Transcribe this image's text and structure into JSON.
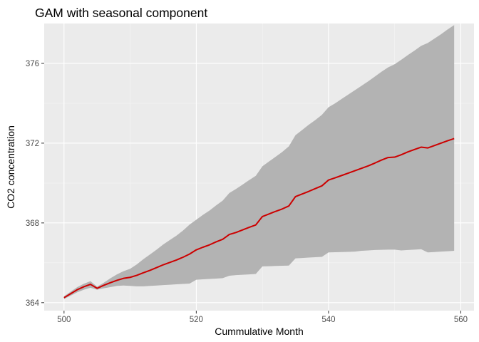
{
  "chart_data": {
    "type": "line",
    "title": "GAM with seasonal component",
    "xlabel": "Cummulative Month",
    "ylabel": "CO2 concentration",
    "xlim": [
      497,
      562
    ],
    "ylim": [
      363.6,
      378.0
    ],
    "xticks": [
      500,
      520,
      540,
      560
    ],
    "yticks": [
      364,
      368,
      372,
      376
    ],
    "grid": true,
    "legend": "none",
    "colors": {
      "panel_bg": "#ebebeb",
      "grid_major": "#ffffff",
      "grid_minor": "#f5f5f5",
      "ribbon": "#b3b3b3",
      "line": "#cc0000",
      "tick": "#333333"
    },
    "series": [
      {
        "x": [
          500,
          501,
          502,
          503,
          504,
          505,
          506,
          507,
          508,
          509,
          510,
          511,
          512,
          513,
          514,
          515,
          516,
          517,
          518,
          519,
          520,
          521,
          522,
          523,
          524,
          525,
          526,
          527,
          528,
          529,
          530,
          531,
          532,
          533,
          534,
          535,
          536,
          537,
          538,
          539,
          540,
          541,
          542,
          543,
          544,
          545,
          546,
          547,
          548,
          549,
          550,
          551,
          552,
          553,
          554,
          555,
          556,
          557,
          558,
          559
        ],
        "values": [
          364.25,
          364.45,
          364.65,
          364.8,
          364.92,
          364.72,
          364.87,
          365.0,
          365.12,
          365.22,
          365.27,
          365.37,
          365.5,
          365.62,
          365.76,
          365.9,
          366.02,
          366.14,
          366.28,
          366.44,
          366.65,
          366.78,
          366.9,
          367.05,
          367.18,
          367.42,
          367.52,
          367.65,
          367.78,
          367.9,
          368.32,
          368.45,
          368.58,
          368.7,
          368.85,
          369.32,
          369.45,
          369.58,
          369.72,
          369.86,
          370.15,
          370.26,
          370.38,
          370.5,
          370.62,
          370.74,
          370.86,
          371.0,
          371.15,
          371.28,
          371.3,
          371.42,
          371.56,
          371.68,
          371.8,
          371.76,
          371.88,
          372.0,
          372.12,
          372.23
        ],
        "lower": [
          364.18,
          364.35,
          364.52,
          364.65,
          364.75,
          364.65,
          364.72,
          364.78,
          364.84,
          364.86,
          364.84,
          364.82,
          364.82,
          364.84,
          364.86,
          364.88,
          364.9,
          364.92,
          364.94,
          364.96,
          365.15,
          365.17,
          365.19,
          365.21,
          365.23,
          365.35,
          365.38,
          365.4,
          365.42,
          365.44,
          365.82,
          365.83,
          365.84,
          365.85,
          365.86,
          366.22,
          366.24,
          366.26,
          366.28,
          366.3,
          366.52,
          366.53,
          366.54,
          366.55,
          366.56,
          366.6,
          366.62,
          366.64,
          366.65,
          366.66,
          366.66,
          366.62,
          366.64,
          366.66,
          366.68,
          366.52,
          366.54,
          366.56,
          366.58,
          366.6
        ],
        "upper": [
          364.32,
          364.55,
          364.78,
          364.95,
          365.08,
          364.8,
          365.0,
          365.22,
          365.42,
          365.58,
          365.7,
          365.92,
          366.18,
          366.42,
          366.66,
          366.92,
          367.14,
          367.36,
          367.62,
          367.92,
          368.16,
          368.4,
          368.62,
          368.88,
          369.12,
          369.5,
          369.7,
          369.92,
          370.15,
          370.36,
          370.84,
          371.08,
          371.32,
          371.56,
          371.84,
          372.4,
          372.66,
          372.92,
          373.16,
          373.42,
          373.8,
          374.0,
          374.22,
          374.44,
          374.66,
          374.88,
          375.1,
          375.34,
          375.58,
          375.8,
          375.96,
          376.18,
          376.42,
          376.64,
          376.88,
          377.02,
          377.24,
          377.46,
          377.7,
          377.92
        ]
      }
    ]
  }
}
